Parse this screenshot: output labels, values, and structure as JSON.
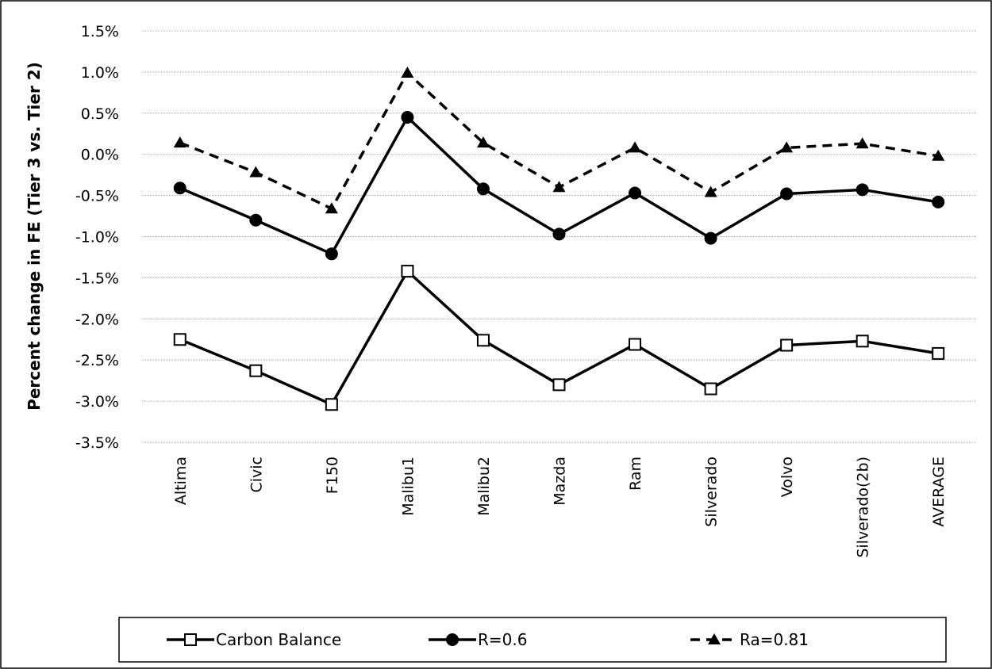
{
  "chart_data": {
    "type": "line",
    "y_label": "Percent change in FE (Tier 3 vs. Tier 2)",
    "categories": [
      "Altima",
      "Civic",
      "F150",
      "Malibu1",
      "Malibu2",
      "Mazda",
      "Ram",
      "Silverado",
      "Volvo",
      "Silverado(2b)",
      "AVERAGE"
    ],
    "series": [
      {
        "name": "Carbon Balance",
        "color": "#000000",
        "marker": "square",
        "dashed": false,
        "values": [
          -2.25,
          -2.63,
          -3.04,
          -1.42,
          -2.26,
          -2.8,
          -2.31,
          -2.85,
          -2.32,
          -2.27,
          -2.42
        ]
      },
      {
        "name": "R=0.6",
        "color": "#000000",
        "marker": "circle",
        "dashed": false,
        "values": [
          -0.41,
          -0.8,
          -1.21,
          0.45,
          -0.42,
          -0.97,
          -0.47,
          -1.02,
          -0.48,
          -0.43,
          -0.58
        ]
      },
      {
        "name": "Ra=0.81",
        "color": "#000000",
        "marker": "triangle",
        "dashed": true,
        "values": [
          0.14,
          -0.22,
          -0.66,
          0.99,
          0.14,
          -0.4,
          0.08,
          -0.46,
          0.08,
          0.13,
          -0.02
        ]
      }
    ],
    "ylim": [
      -3.5,
      1.5
    ],
    "yticks": [
      {
        "value": -3.5,
        "label": "-3.5%"
      },
      {
        "value": -3,
        "label": "-3.0%"
      },
      {
        "value": -2.5,
        "label": "-2.5%"
      },
      {
        "value": -2,
        "label": "-2.0%"
      },
      {
        "value": -1.5,
        "label": "-1.5%"
      },
      {
        "value": -1,
        "label": "-1.0%"
      },
      {
        "value": -0.5,
        "label": "-0.5%"
      },
      {
        "value": 0,
        "label": "0.0%"
      },
      {
        "value": 0.5,
        "label": "0.5%"
      },
      {
        "value": 1,
        "label": "1.0%"
      },
      {
        "value": 1.5,
        "label": "1.5%"
      }
    ],
    "grid": true,
    "legend": "bottom"
  }
}
